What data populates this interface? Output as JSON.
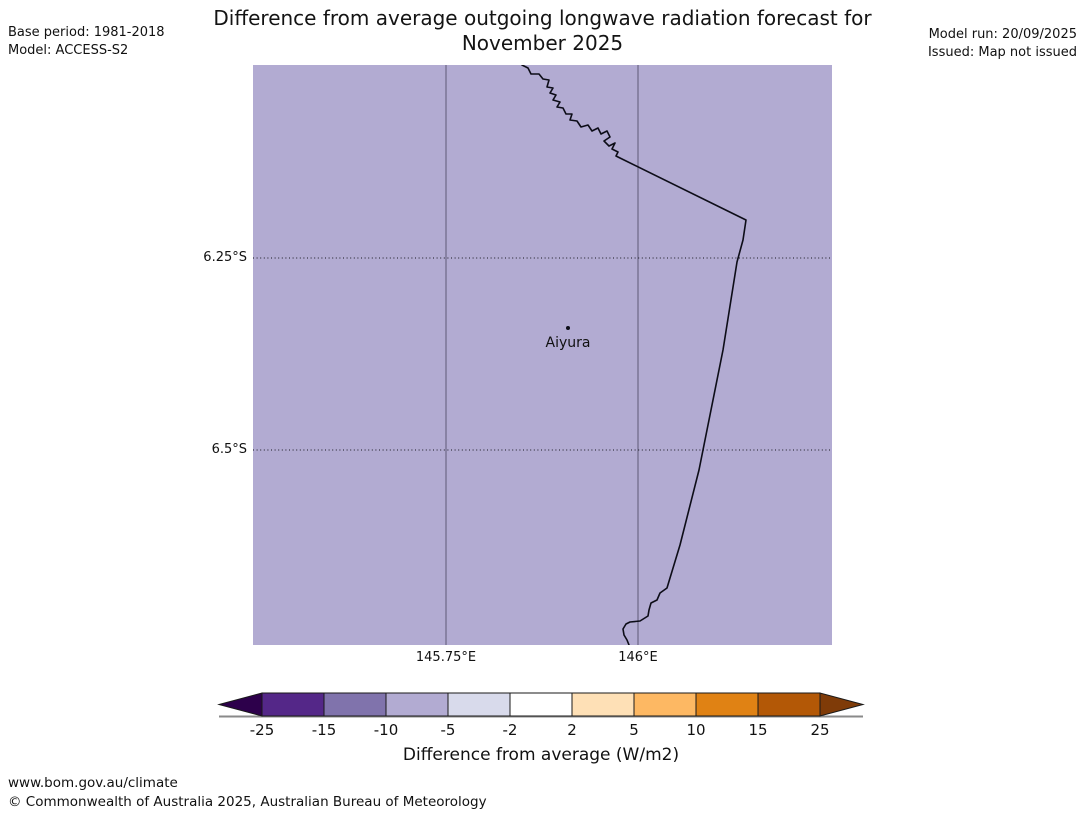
{
  "header": {
    "base_period": "Base period: 1981-2018",
    "model": "Model: ACCESS-S2",
    "model_run": "Model run: 20/09/2025",
    "issued": "Issued: Map not issued"
  },
  "title": {
    "line1": "Difference from average outgoing longwave radiation forecast for",
    "line2": "November 2025"
  },
  "map": {
    "fill_color": "#b2abd2",
    "coastline_color": "#0d0d18",
    "gridline_color": "#5d5975",
    "station": {
      "name": "Aiyura"
    },
    "lat_labels": [
      "6.25°S",
      "6.5°S"
    ],
    "lon_labels": [
      "145.75°E",
      "146°E"
    ]
  },
  "colorbar": {
    "title": "Difference from average (W/m2)",
    "ticks": [
      "-25",
      "-15",
      "-10",
      "-5",
      "-2",
      "2",
      "5",
      "10",
      "15",
      "25"
    ],
    "segment_colors": [
      "#542788",
      "#8073ac",
      "#b2abd2",
      "#d8daeb",
      "#ffffff",
      "#fee0b6",
      "#fdb863",
      "#e08214",
      "#b35806"
    ],
    "left_arrow_color": "#2d004b",
    "right_arrow_color": "#7f3b08",
    "outline_color": "#1a1a1a",
    "baseline_color": "#8a8a8a"
  },
  "footer": {
    "url": "www.bom.gov.au/climate",
    "copyright": "© Commonwealth of Australia 2025, Australian Bureau of Meteorology"
  }
}
